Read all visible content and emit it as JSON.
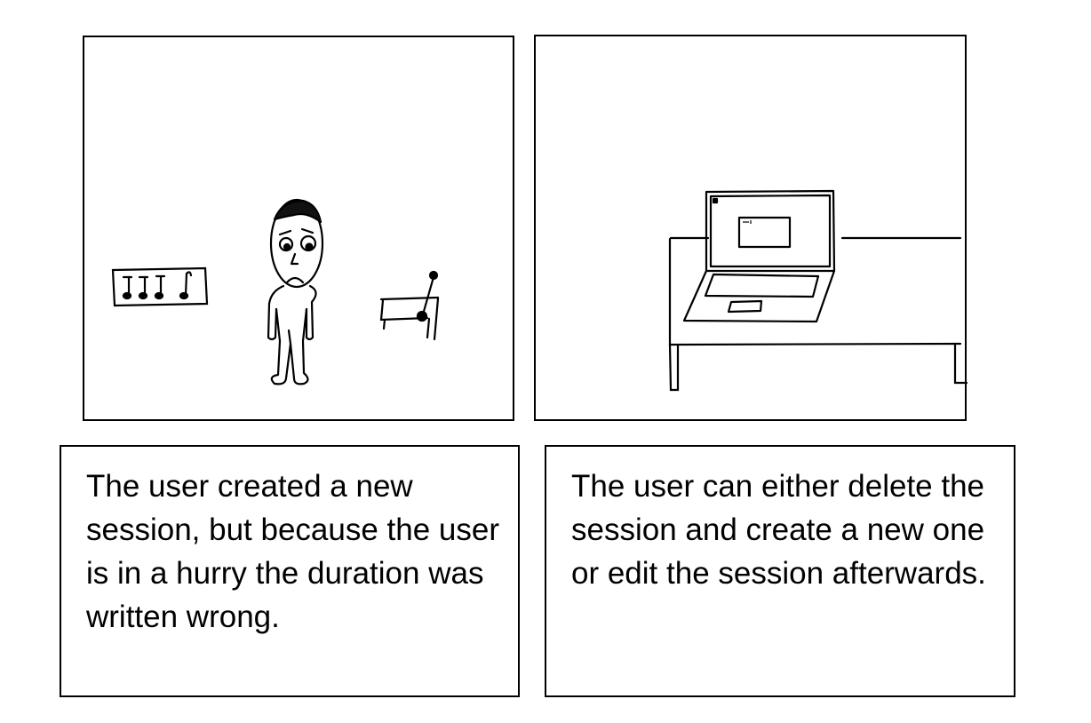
{
  "panels": [
    {
      "caption": "The user created a new session, but because the user is in a hurry the duration was written wrong."
    },
    {
      "caption": "The user can either delete the session and create a new one or edit the session afterwards."
    }
  ],
  "colors": {
    "ink": "#000000",
    "paper": "#ffffff"
  },
  "icons": [
    "music-notes-sign",
    "worried-stick-figure",
    "desk-with-microphone",
    "laptop-on-table"
  ]
}
